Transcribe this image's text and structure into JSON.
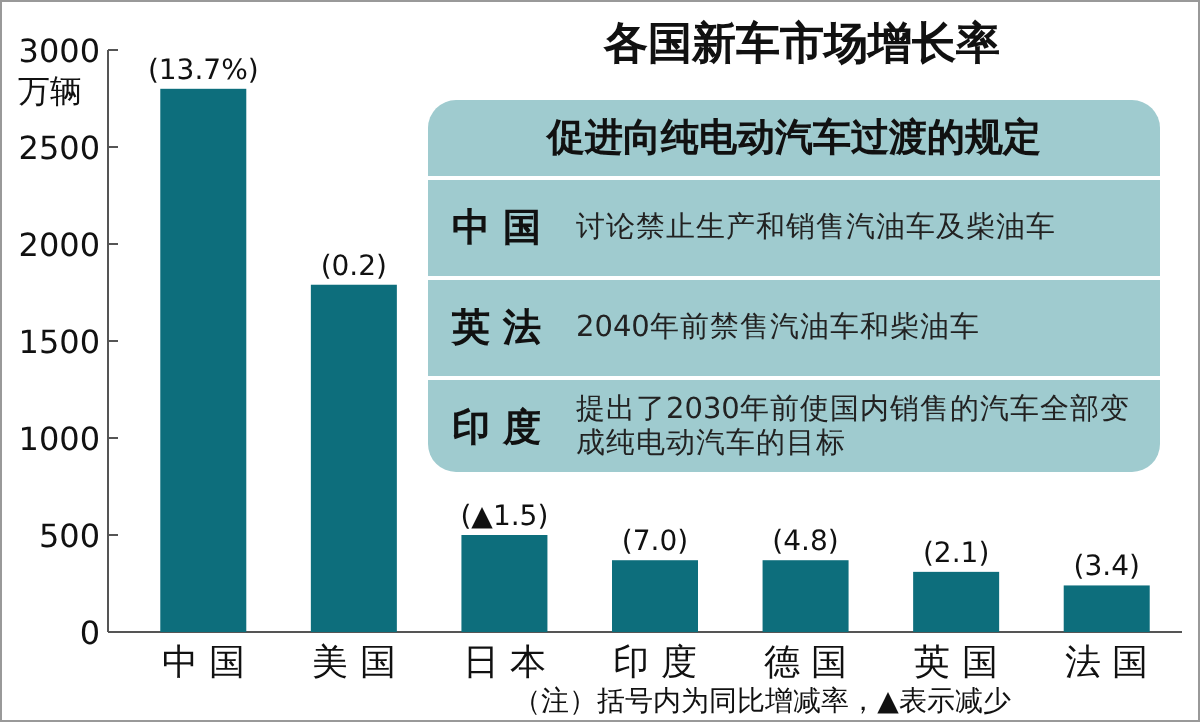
{
  "chart_data": [
    {
      "type": "bar",
      "title": "各国新车市场增长率",
      "ylabel": "万辆",
      "categories": [
        "中 国",
        "美 国",
        "日 本",
        "印 度",
        "德 国",
        "英 国",
        "法 国"
      ],
      "values": [
        2800,
        1790,
        500,
        370,
        370,
        310,
        240
      ],
      "color": "#0d6e7c",
      "ylim": [
        0,
        3000
      ],
      "yticks": [
        0,
        500,
        1000,
        1500,
        2000,
        2500,
        3000
      ],
      "grid": false,
      "annotations": [
        {
          "text": "(13.7%)",
          "x": "中 国",
          "y": 2800
        },
        {
          "text": "(0.2)",
          "x": "美 国",
          "y": 1790
        },
        {
          "text": "(▲1.5)",
          "x": "日 本",
          "y": 500
        },
        {
          "text": "(7.0)",
          "x": "印 度",
          "y": 370
        },
        {
          "text": "(4.8)",
          "x": "德 国",
          "y": 370
        },
        {
          "text": "(2.1)",
          "x": "英 国",
          "y": 310
        },
        {
          "text": "(3.4)",
          "x": "法 国",
          "y": 240
        },
        "（注）括号内为同比增减率，▲表示减少"
      ]
    },
    {
      "type": "other",
      "title": "促进向纯电动汽车过渡的规定",
      "annotations": [
        "中 国",
        "讨论禁止生产和销售汽油车及柴油车",
        "英 法",
        "2040年前禁售汽油车和柴油车",
        "印 度",
        "提出了2030年前使国内销售的汽车全部变成纯电动汽车的目标"
      ]
    }
  ]
}
